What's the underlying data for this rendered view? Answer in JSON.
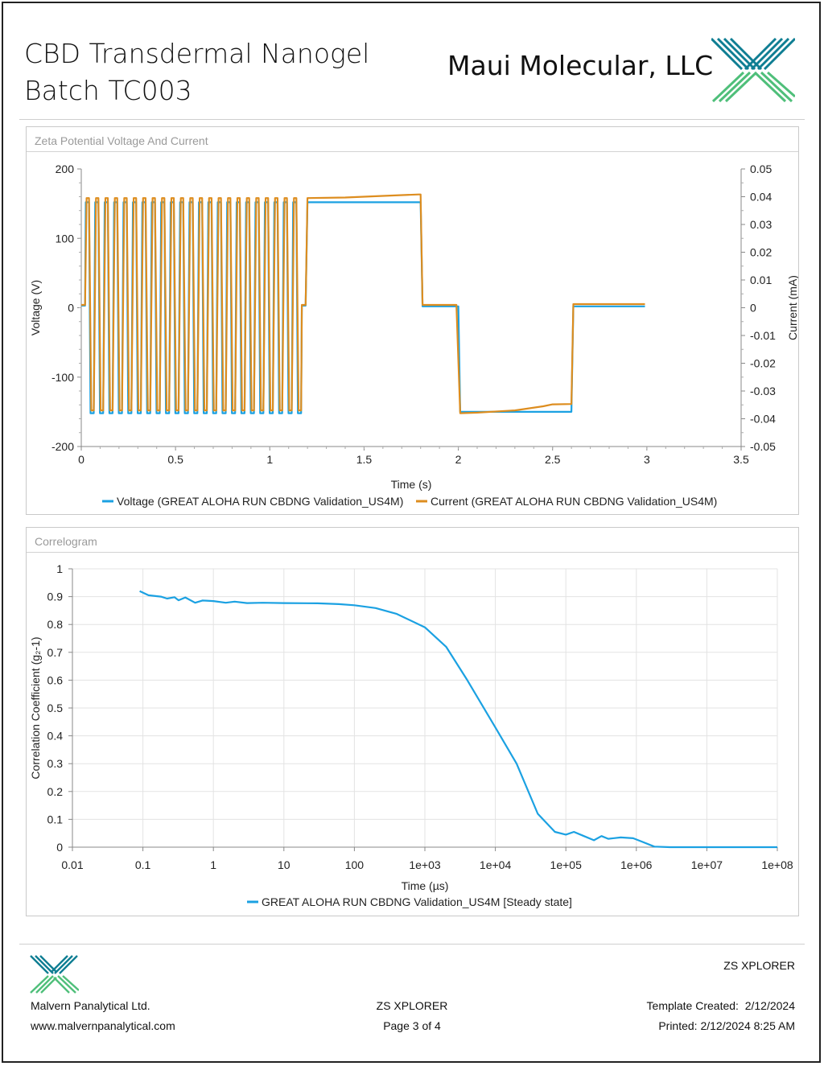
{
  "header": {
    "title": "CBD Transdermal Nanogel Batch TC003",
    "company": "Maui Molecular, LLC"
  },
  "colors": {
    "voltage": "#1ba1e2",
    "current": "#dd8d1f",
    "correlation": "#1ba1e2",
    "logo_dark": "#0f7e93",
    "logo_green": "#4fbf7a"
  },
  "chart_data": [
    {
      "panel_title": "Zeta Potential Voltage And Current",
      "type": "line",
      "xlabel": "Time (s)",
      "ylabel": "Voltage (V)",
      "y2label": "Current (mA)",
      "xlim": [
        0,
        3.5
      ],
      "ylim": [
        -200,
        200
      ],
      "y2lim": [
        -0.05,
        0.05
      ],
      "xticks": [
        "0",
        "0.5",
        "1",
        "1.5",
        "2",
        "2.5",
        "3",
        "3.5"
      ],
      "yticks": [
        "200",
        "100",
        "0",
        "-100",
        "-200"
      ],
      "y2ticks": [
        "0.05",
        "0.04",
        "0.03",
        "0.02",
        "0.01",
        "0",
        "-0.01",
        "-0.02",
        "-0.03",
        "-0.04",
        "-0.05"
      ],
      "grid": false,
      "legend": "bottom",
      "fast_field": {
        "start": 0.02,
        "end": 1.17,
        "cycles": 23,
        "voltage_amplitude": 152,
        "current_high": 0.0395,
        "current_low": -0.037
      },
      "series": [
        {
          "name": "Voltage (GREAT ALOHA RUN CBDNG Validation_US4M)",
          "axis": "left",
          "points": [
            [
              1.17,
              3
            ],
            [
              1.18,
              3
            ],
            [
              1.19,
              3
            ],
            [
              1.2,
              152
            ],
            [
              1.8,
              152
            ],
            [
              1.81,
              2
            ],
            [
              2,
              2
            ],
            [
              2.01,
              -150
            ],
            [
              2.6,
              -150
            ],
            [
              2.61,
              2
            ],
            [
              2.99,
              2
            ]
          ]
        },
        {
          "name": "Current (GREAT ALOHA RUN CBDNG Validation_US4M)",
          "axis": "right",
          "points": [
            [
              1.17,
              0.001
            ],
            [
              1.18,
              0.001
            ],
            [
              1.19,
              0.001
            ],
            [
              1.2,
              0.0395
            ],
            [
              1.4,
              0.0397
            ],
            [
              1.6,
              0.0403
            ],
            [
              1.79,
              0.0408
            ],
            [
              1.8,
              0.0408
            ],
            [
              1.81,
              0.001
            ],
            [
              1.99,
              0.001
            ],
            [
              2.01,
              -0.038
            ],
            [
              2.1,
              -0.0378
            ],
            [
              2.3,
              -0.037
            ],
            [
              2.45,
              -0.0355
            ],
            [
              2.5,
              -0.0348
            ],
            [
              2.6,
              -0.0347
            ],
            [
              2.61,
              0.0013
            ],
            [
              2.99,
              0.0013
            ]
          ]
        }
      ]
    },
    {
      "panel_title": "Correlogram",
      "type": "line",
      "xlabel": "Time (µs)",
      "ylabel": "Correlation Coefficient (g₂-1)",
      "x_scale": "log",
      "xlim": [
        0.01,
        100000000
      ],
      "ylim": [
        0,
        1
      ],
      "xticks": [
        "0.01",
        "0.1",
        "1",
        "10",
        "100",
        "1e+03",
        "1e+04",
        "1e+05",
        "1e+06",
        "1e+07",
        "1e+08"
      ],
      "yticks": [
        "1",
        "0.9",
        "0.8",
        "0.7",
        "0.6",
        "0.5",
        "0.4",
        "0.3",
        "0.2",
        "0.1",
        "0"
      ],
      "grid": true,
      "legend": "bottom",
      "series": [
        {
          "name": "GREAT ALOHA RUN CBDNG Validation_US4M [Steady state]",
          "points": [
            [
              0.09,
              0.92
            ],
            [
              0.12,
              0.905
            ],
            [
              0.18,
              0.9
            ],
            [
              0.22,
              0.893
            ],
            [
              0.28,
              0.898
            ],
            [
              0.32,
              0.887
            ],
            [
              0.4,
              0.897
            ],
            [
              0.55,
              0.878
            ],
            [
              0.7,
              0.886
            ],
            [
              1,
              0.884
            ],
            [
              1.5,
              0.878
            ],
            [
              2,
              0.882
            ],
            [
              3,
              0.877
            ],
            [
              5,
              0.878
            ],
            [
              10,
              0.877
            ],
            [
              30,
              0.876
            ],
            [
              60,
              0.873
            ],
            [
              100,
              0.869
            ],
            [
              200,
              0.859
            ],
            [
              400,
              0.838
            ],
            [
              1000,
              0.79
            ],
            [
              2000,
              0.72
            ],
            [
              4000,
              0.6
            ],
            [
              10000,
              0.43
            ],
            [
              20000,
              0.3
            ],
            [
              40000,
              0.12
            ],
            [
              70000,
              0.055
            ],
            [
              100000,
              0.045
            ],
            [
              130000,
              0.055
            ],
            [
              180000,
              0.04
            ],
            [
              250000,
              0.025
            ],
            [
              320000,
              0.04
            ],
            [
              400000,
              0.03
            ],
            [
              600000,
              0.035
            ],
            [
              900000,
              0.032
            ],
            [
              1200000,
              0.02
            ],
            [
              1800000,
              0.002
            ],
            [
              3000000,
              0
            ],
            [
              100000000,
              0
            ]
          ]
        }
      ]
    }
  ],
  "footer": {
    "software_right": "ZS XPLORER",
    "company": "Malvern Panalytical Ltd.",
    "website": "www.malvernpanalytical.com",
    "software_center": "ZS XPLORER",
    "page": "Page 3 of 4",
    "template_created": "Template Created:  2/12/2024",
    "printed": "Printed: 2/12/2024 8:25 AM"
  }
}
